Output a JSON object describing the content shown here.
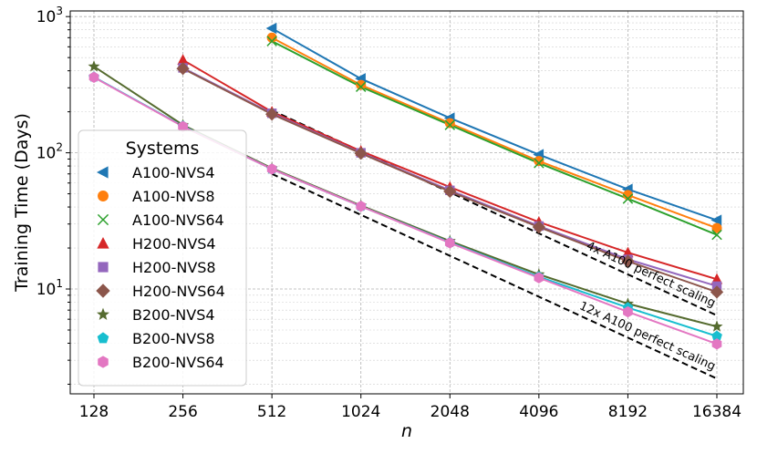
{
  "chart_data": {
    "type": "line",
    "xlabel": "n",
    "ylabel": "Training Time (Days)",
    "x_scale": "log2",
    "y_scale": "log10",
    "x": [
      128,
      256,
      512,
      1024,
      2048,
      4096,
      8192,
      16384
    ],
    "x_tick_labels": [
      "128",
      "256",
      "512",
      "1024",
      "2048",
      "4096",
      "8192",
      "16384"
    ],
    "y_tick_labels": [
      {
        "value": 10,
        "base": "10",
        "exp": "1"
      },
      {
        "value": 100,
        "base": "10",
        "exp": "2"
      },
      {
        "value": 1000,
        "base": "10",
        "exp": "3"
      }
    ],
    "ylim": [
      1.7,
      1100
    ],
    "grid": true,
    "legend_title": "Systems",
    "legend_position": "center-left",
    "series": [
      {
        "name": "A100-NVS4",
        "color": "#1f77b4",
        "marker": "triangle-left",
        "points": [
          [
            512,
            820
          ],
          [
            1024,
            350
          ],
          [
            2048,
            180
          ],
          [
            4096,
            97
          ],
          [
            8192,
            54
          ],
          [
            16384,
            32
          ]
        ]
      },
      {
        "name": "A100-NVS8",
        "color": "#ff7f0e",
        "marker": "circle",
        "points": [
          [
            512,
            700
          ],
          [
            1024,
            315
          ],
          [
            2048,
            165
          ],
          [
            4096,
            87
          ],
          [
            8192,
            49
          ],
          [
            16384,
            28
          ]
        ]
      },
      {
        "name": "A100-NVS64",
        "color": "#2ca02c",
        "marker": "x",
        "points": [
          [
            512,
            660
          ],
          [
            1024,
            305
          ],
          [
            2048,
            160
          ],
          [
            4096,
            84
          ],
          [
            8192,
            46
          ],
          [
            16384,
            25
          ]
        ]
      },
      {
        "name": "H200-NVS4",
        "color": "#d62728",
        "marker": "triangle-up",
        "points": [
          [
            256,
            480
          ],
          [
            512,
            200
          ],
          [
            1024,
            103
          ],
          [
            2048,
            56
          ],
          [
            4096,
            31
          ],
          [
            8192,
            18.5
          ],
          [
            16384,
            11.8
          ]
        ]
      },
      {
        "name": "H200-NVS8",
        "color": "#9467bd",
        "marker": "square",
        "points": [
          [
            256,
            420
          ],
          [
            512,
            195
          ],
          [
            1024,
            100
          ],
          [
            2048,
            53
          ],
          [
            4096,
            29
          ],
          [
            8192,
            16.5
          ],
          [
            16384,
            10.5
          ]
        ]
      },
      {
        "name": "H200-NVS64",
        "color": "#8c564b",
        "marker": "diamond",
        "points": [
          [
            256,
            415
          ],
          [
            512,
            192
          ],
          [
            1024,
            99
          ],
          [
            2048,
            52
          ],
          [
            4096,
            28.5
          ],
          [
            8192,
            16
          ],
          [
            16384,
            9.5
          ]
        ]
      },
      {
        "name": "B200-NVS4",
        "color": "#556b2f",
        "marker": "star",
        "points": [
          [
            128,
            430
          ],
          [
            256,
            160
          ],
          [
            512,
            77
          ],
          [
            1024,
            41
          ],
          [
            2048,
            22.5
          ],
          [
            4096,
            12.8
          ],
          [
            8192,
            7.8
          ],
          [
            16384,
            5.3
          ]
        ]
      },
      {
        "name": "B200-NVS8",
        "color": "#17becf",
        "marker": "pentagon",
        "points": [
          [
            128,
            360
          ],
          [
            256,
            157
          ],
          [
            512,
            76
          ],
          [
            1024,
            40.5
          ],
          [
            2048,
            22
          ],
          [
            4096,
            12.3
          ],
          [
            8192,
            7.3
          ],
          [
            16384,
            4.5
          ]
        ]
      },
      {
        "name": "B200-NVS64",
        "color": "#e377c2",
        "marker": "hexagon",
        "points": [
          [
            128,
            358
          ],
          [
            256,
            156
          ],
          [
            512,
            76
          ],
          [
            1024,
            40.5
          ],
          [
            2048,
            21.8
          ],
          [
            4096,
            12.1
          ],
          [
            8192,
            6.8
          ],
          [
            16384,
            3.95
          ]
        ]
      }
    ],
    "reference_lines": [
      {
        "label": "4x A100 perfect scaling",
        "color": "#000000",
        "dash": "dashed",
        "points": [
          [
            512,
            205
          ],
          [
            16384,
            6.4
          ]
        ]
      },
      {
        "label": "12x A100 perfect scaling",
        "color": "#000000",
        "dash": "dashed",
        "points": [
          [
            512,
            70
          ],
          [
            16384,
            2.2
          ]
        ]
      }
    ]
  }
}
